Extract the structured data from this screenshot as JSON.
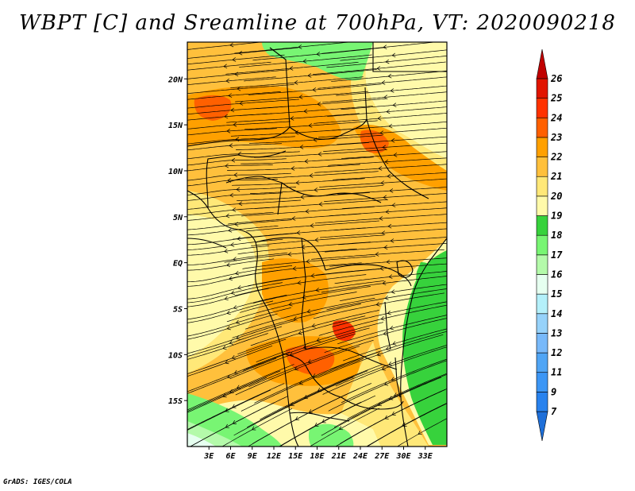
{
  "title": "WBPT [C] and Sreamline at 700hPa, VT: 2020090218",
  "credit": "GrADS: IGES/COLA",
  "map": {
    "lon_range": [
      0,
      36
    ],
    "lat_range": [
      -20,
      24
    ],
    "x_ticks": [
      "3E",
      "6E",
      "9E",
      "12E",
      "15E",
      "18E",
      "21E",
      "24E",
      "27E",
      "30E",
      "33E"
    ],
    "y_ticks": [
      "20N",
      "15N",
      "10N",
      "5N",
      "EQ",
      "5S",
      "10S",
      "15S"
    ],
    "x_tick_values": [
      3,
      6,
      9,
      12,
      15,
      18,
      21,
      24,
      27,
      30,
      33
    ],
    "y_tick_values": [
      20,
      15,
      10,
      5,
      0,
      -5,
      -10,
      -15
    ]
  },
  "colorbar": {
    "labels": [
      "7",
      "9",
      "11",
      "12",
      "13",
      "14",
      "15",
      "16",
      "17",
      "18",
      "19",
      "20",
      "21",
      "22",
      "23",
      "24",
      "25",
      "26"
    ],
    "colors": [
      "#1e6fd9",
      "#2882ee",
      "#3c96f5",
      "#50a5f5",
      "#78b9fa",
      "#96d2fa",
      "#b4f0fa",
      "#e6fff0",
      "#b4faaa",
      "#78f573",
      "#37d23c",
      "#fffaaa",
      "#ffe878",
      "#ffc03c",
      "#ffa000",
      "#ff6000",
      "#ff3200",
      "#e11400",
      "#c00000"
    ]
  },
  "colors": {
    "cool_green": "#37d23c",
    "light_green": "#78f573",
    "pale_yellow": "#fffaaa",
    "yellow": "#ffe878",
    "light_orange": "#ffc03c",
    "orange": "#ffa000",
    "dark_orange": "#ff6000",
    "red_orange": "#ff3200"
  }
}
